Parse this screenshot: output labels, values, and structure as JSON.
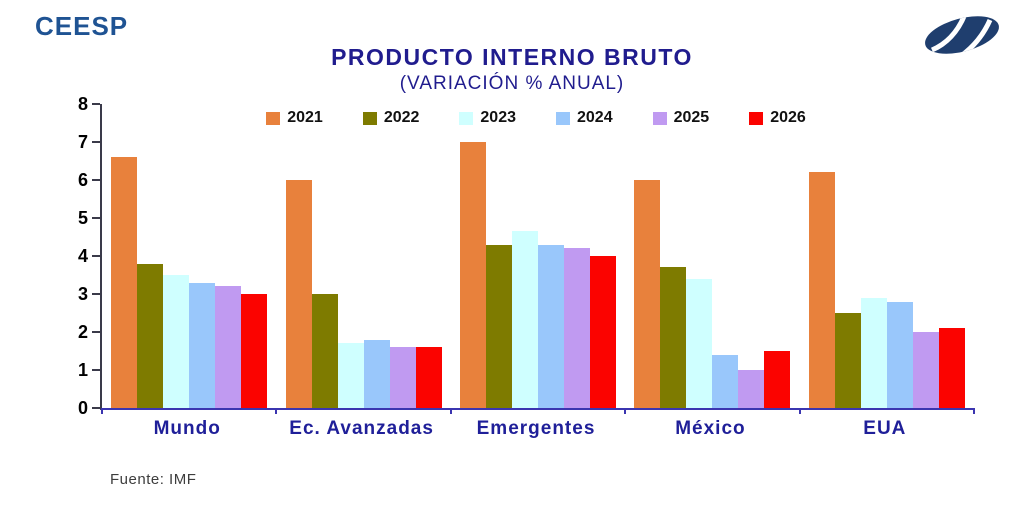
{
  "header": {
    "brand": "CEESP"
  },
  "chart_data": {
    "type": "bar",
    "title": "PRODUCTO INTERNO BRUTO",
    "subtitle": "(VARIACIÓN % ANUAL)",
    "categories": [
      "Mundo",
      "Ec. Avanzadas",
      "Emergentes",
      "México",
      "EUA"
    ],
    "series": [
      {
        "name": "2021",
        "color": "#E8813C",
        "values": [
          6.6,
          6.0,
          7.0,
          6.0,
          6.2
        ]
      },
      {
        "name": "2022",
        "color": "#7E7B00",
        "values": [
          3.8,
          3.0,
          4.3,
          3.7,
          2.5
        ]
      },
      {
        "name": "2023",
        "color": "#CFFFFF",
        "values": [
          3.5,
          1.7,
          4.65,
          3.4,
          2.9
        ]
      },
      {
        "name": "2024",
        "color": "#99C7FB",
        "values": [
          3.3,
          1.8,
          4.3,
          1.4,
          2.8
        ]
      },
      {
        "name": "2025",
        "color": "#C09AF1",
        "values": [
          3.2,
          1.6,
          4.2,
          1.0,
          2.0
        ]
      },
      {
        "name": "2026",
        "color": "#FB0300",
        "values": [
          3.0,
          1.6,
          4.0,
          1.5,
          2.1
        ]
      }
    ],
    "ylim": [
      0,
      8
    ],
    "yticks": [
      0,
      1,
      2,
      3,
      4,
      5,
      6,
      7,
      8
    ],
    "grid": false,
    "legend_position": "top-center"
  },
  "footer": {
    "source": "Fuente: IMF"
  },
  "theme": {
    "brand_color": "#1F5393",
    "title_color": "#201C8E",
    "category_color": "#1F1F99",
    "x_axis_color": "#3B35B0",
    "y_axis_color": "#3A3A4A",
    "logo_color": "#1F3E6E"
  }
}
